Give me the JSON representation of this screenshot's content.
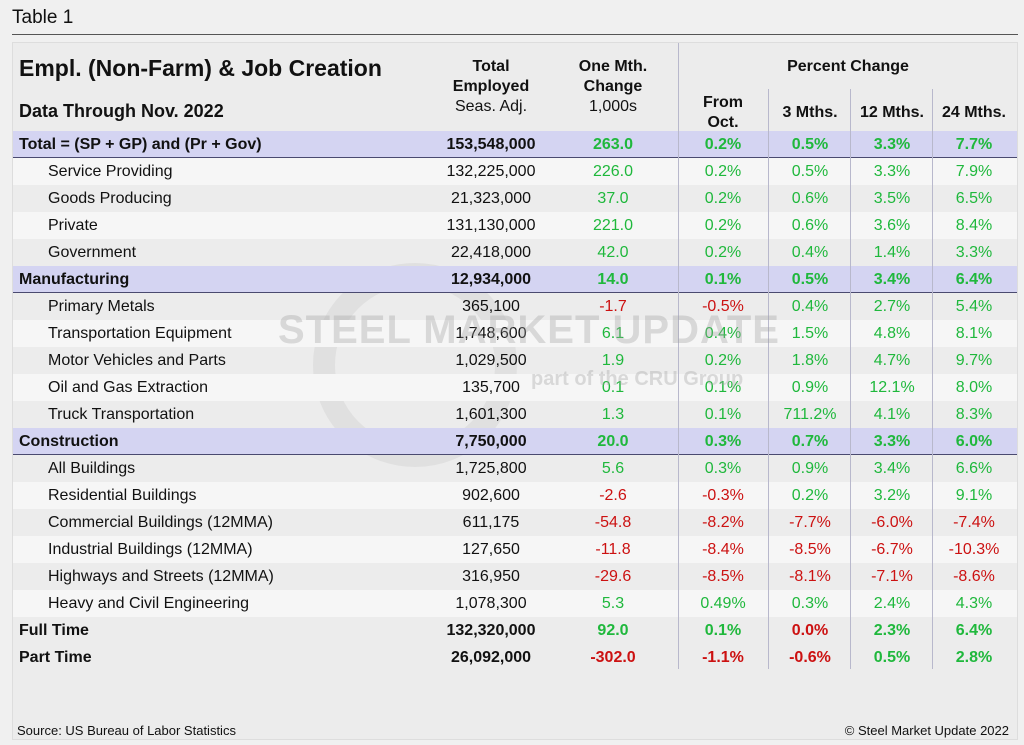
{
  "caption": "Table 1",
  "header": {
    "title": "Empl. (Non-Farm) & Job Creation",
    "subtitle": "Data Through Nov. 2022",
    "total_1": "Total",
    "total_2": "Employed",
    "total_3": "Seas. Adj.",
    "mth_1": "One Mth.",
    "mth_2": "Change",
    "mth_3": "1,000s",
    "pct": "Percent Change",
    "from_1": "From",
    "from_2": "Oct.",
    "m3": "3 Mths.",
    "m12": "12 Mths.",
    "m24": "24 Mths."
  },
  "colors": {
    "positive": "#1fb83c",
    "negative": "#cc1111",
    "section_bg": "#d4d4f2"
  },
  "watermark": {
    "line1": "STEEL MARKET UPDATE",
    "line2": "part of the CRU Group"
  },
  "footer": {
    "source": "Source: US Bureau of Labor Statistics",
    "copyright": "© Steel Market Update 2022"
  },
  "chart_data": {
    "type": "table",
    "columns": [
      "Total Employed Seas. Adj.",
      "One Mth. Change 1,000s",
      "From Oct.",
      "3 Mths.",
      "12 Mths.",
      "24 Mths."
    ],
    "rows": [
      {
        "label": "Total = (SP + GP) and (Pr + Gov)",
        "kind": "sec",
        "cells": [
          "153,548,000",
          "263.0",
          "0.2%",
          "0.5%",
          "3.3%",
          "7.7%"
        ],
        "red": []
      },
      {
        "label": "Service Providing",
        "kind": "sub",
        "cells": [
          "132,225,000",
          "226.0",
          "0.2%",
          "0.5%",
          "3.3%",
          "7.9%"
        ],
        "red": []
      },
      {
        "label": "Goods Producing",
        "kind": "sub",
        "cells": [
          "21,323,000",
          "37.0",
          "0.2%",
          "0.6%",
          "3.5%",
          "6.5%"
        ],
        "red": []
      },
      {
        "label": "Private",
        "kind": "sub",
        "cells": [
          "131,130,000",
          "221.0",
          "0.2%",
          "0.6%",
          "3.6%",
          "8.4%"
        ],
        "red": []
      },
      {
        "label": "Government",
        "kind": "sub",
        "cells": [
          "22,418,000",
          "42.0",
          "0.2%",
          "0.4%",
          "1.4%",
          "3.3%"
        ],
        "red": []
      },
      {
        "label": "Manufacturing",
        "kind": "sec",
        "cells": [
          "12,934,000",
          "14.0",
          "0.1%",
          "0.5%",
          "3.4%",
          "6.4%"
        ],
        "red": []
      },
      {
        "label": "Primary Metals",
        "kind": "sub",
        "cells": [
          "365,100",
          "-1.7",
          "-0.5%",
          "0.4%",
          "2.7%",
          "5.4%"
        ],
        "red": [
          1,
          2
        ]
      },
      {
        "label": "Transportation Equipment",
        "kind": "sub",
        "cells": [
          "1,748,600",
          "6.1",
          "0.4%",
          "1.5%",
          "4.8%",
          "8.1%"
        ],
        "red": []
      },
      {
        "label": "Motor Vehicles and Parts",
        "kind": "sub",
        "cells": [
          "1,029,500",
          "1.9",
          "0.2%",
          "1.8%",
          "4.7%",
          "9.7%"
        ],
        "red": []
      },
      {
        "label": "Oil and Gas Extraction",
        "kind": "sub",
        "cells": [
          "135,700",
          "0.1",
          "0.1%",
          "0.9%",
          "12.1%",
          "8.0%"
        ],
        "red": []
      },
      {
        "label": "Truck Transportation",
        "kind": "sub",
        "cells": [
          "1,601,300",
          "1.3",
          "0.1%",
          "711.2%",
          "4.1%",
          "8.3%"
        ],
        "red": []
      },
      {
        "label": "Construction",
        "kind": "sec",
        "cells": [
          "7,750,000",
          "20.0",
          "0.3%",
          "0.7%",
          "3.3%",
          "6.0%"
        ],
        "red": []
      },
      {
        "label": "All Buildings",
        "kind": "sub",
        "cells": [
          "1,725,800",
          "5.6",
          "0.3%",
          "0.9%",
          "3.4%",
          "6.6%"
        ],
        "red": []
      },
      {
        "label": "Residential Buildings",
        "kind": "sub",
        "cells": [
          "902,600",
          "-2.6",
          "-0.3%",
          "0.2%",
          "3.2%",
          "9.1%"
        ],
        "red": [
          1,
          2
        ]
      },
      {
        "label": "Commercial Buildings (12MMA)",
        "kind": "sub",
        "cells": [
          "611,175",
          "-54.8",
          "-8.2%",
          "-7.7%",
          "-6.0%",
          "-7.4%"
        ],
        "red": [
          1,
          2,
          3,
          4,
          5
        ]
      },
      {
        "label": "Industrial Buildings (12MMA)",
        "kind": "sub",
        "cells": [
          "127,650",
          "-11.8",
          "-8.4%",
          "-8.5%",
          "-6.7%",
          "-10.3%"
        ],
        "red": [
          1,
          2,
          3,
          4,
          5
        ]
      },
      {
        "label": "Highways and Streets (12MMA)",
        "kind": "sub",
        "cells": [
          "316,950",
          "-29.6",
          "-8.5%",
          "-8.1%",
          "-7.1%",
          "-8.6%"
        ],
        "red": [
          1,
          2,
          3,
          4,
          5
        ]
      },
      {
        "label": "Heavy and Civil Engineering",
        "kind": "sub",
        "cells": [
          "1,078,300",
          "5.3",
          "0.49%",
          "0.3%",
          "2.4%",
          "4.3%"
        ],
        "red": []
      },
      {
        "label": "Full Time",
        "kind": "bold",
        "cells": [
          "132,320,000",
          "92.0",
          "0.1%",
          "0.0%",
          "2.3%",
          "6.4%"
        ],
        "red": [
          3
        ]
      },
      {
        "label": "Part Time",
        "kind": "bold",
        "cells": [
          "26,092,000",
          "-302.0",
          "-1.1%",
          "-0.6%",
          "0.5%",
          "2.8%"
        ],
        "red": [
          1,
          2,
          3
        ]
      }
    ]
  }
}
